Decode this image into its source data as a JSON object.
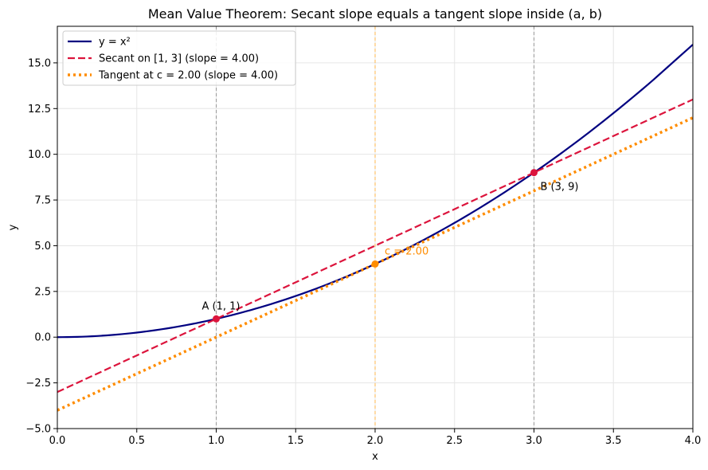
{
  "chart_data": {
    "type": "line",
    "title": "Mean Value Theorem: Secant slope equals a tangent slope inside (a, b)",
    "xlabel": "x",
    "ylabel": "y",
    "xlim": [
      0.0,
      4.0
    ],
    "ylim": [
      -5.0,
      17.0
    ],
    "xticks": [
      0.0,
      0.5,
      1.0,
      1.5,
      2.0,
      2.5,
      3.0,
      3.5,
      4.0
    ],
    "xtick_labels": [
      "0.0",
      "0.5",
      "1.0",
      "1.5",
      "2.0",
      "2.5",
      "3.0",
      "3.5",
      "4.0"
    ],
    "yticks": [
      -5.0,
      -2.5,
      0.0,
      2.5,
      5.0,
      7.5,
      10.0,
      12.5,
      15.0
    ],
    "ytick_labels": [
      "−5.0",
      "−2.5",
      "0.0",
      "2.5",
      "5.0",
      "7.5",
      "10.0",
      "12.5",
      "15.0"
    ],
    "grid": true,
    "legend_position": "top-left",
    "series": [
      {
        "name": "y = x²",
        "style": "solid",
        "color": "#000080",
        "x": [
          0.0,
          0.25,
          0.5,
          0.75,
          1.0,
          1.25,
          1.5,
          1.75,
          2.0,
          2.25,
          2.5,
          2.75,
          3.0,
          3.25,
          3.5,
          3.75,
          4.0
        ],
        "y": [
          0.0,
          0.0625,
          0.25,
          0.5625,
          1.0,
          1.5625,
          2.25,
          3.0625,
          4.0,
          5.0625,
          6.25,
          7.5625,
          9.0,
          10.5625,
          12.25,
          14.0625,
          16.0
        ]
      },
      {
        "name": "Secant on [1, 3] (slope = 4.00)",
        "style": "dashed",
        "color": "#dc143c",
        "x": [
          0.0,
          4.0
        ],
        "y": [
          -3.0,
          13.0
        ]
      },
      {
        "name": "Tangent at c = 2.00 (slope = 4.00)",
        "style": "dotted",
        "color": "#ff8c00",
        "x": [
          0.0,
          4.0
        ],
        "y": [
          -4.0,
          12.0
        ]
      }
    ],
    "vertical_lines": [
      {
        "x": 1.0,
        "color": "#999999",
        "style": "dashed"
      },
      {
        "x": 3.0,
        "color": "#999999",
        "style": "dashed"
      },
      {
        "x": 2.0,
        "color": "#ffb74d",
        "style": "dashed"
      }
    ],
    "points": [
      {
        "x": 1.0,
        "y": 1.0,
        "color": "#dc143c",
        "label": "A (1, 1)"
      },
      {
        "x": 3.0,
        "y": 9.0,
        "color": "#dc143c",
        "label": "B (3, 9)"
      },
      {
        "x": 2.0,
        "y": 4.0,
        "color": "#ff8c00",
        "label": "c = 2.00"
      }
    ]
  }
}
